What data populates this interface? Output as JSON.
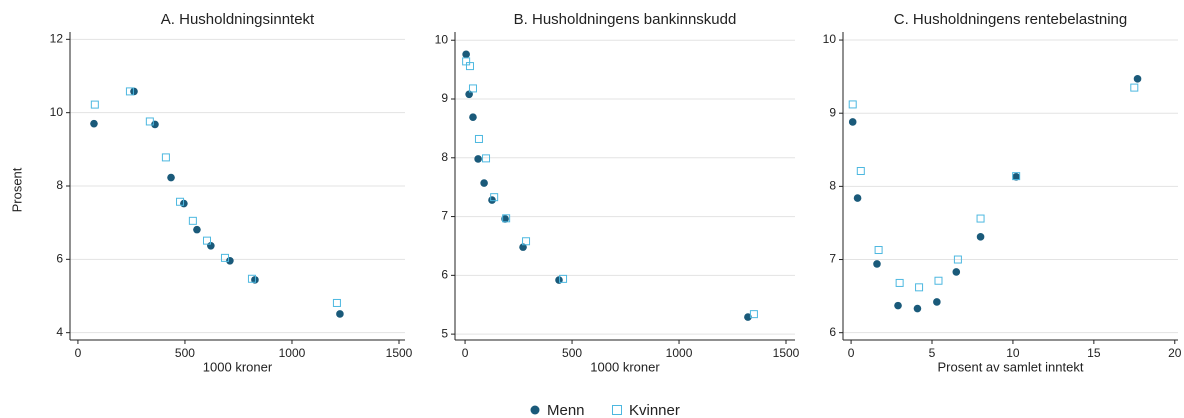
{
  "chart_data": [
    {
      "type": "scatter",
      "title": "A. Husholdningsinntekt",
      "xlabel": "1000 kroner",
      "ylabel": "Prosent",
      "xlim": [
        -37,
        1528
      ],
      "xticks": [
        0,
        500,
        1000,
        1500
      ],
      "ylim": [
        3.8,
        12.2
      ],
      "yticks": [
        4,
        6,
        8,
        10,
        12
      ],
      "grid": true,
      "series": [
        {
          "name": "Menn",
          "color": "#1a5a7a",
          "marker": "circle",
          "x": [
            75,
            262,
            360,
            435,
            495,
            556,
            621,
            710,
            827,
            1224
          ],
          "values": [
            9.7,
            10.58,
            9.68,
            8.23,
            7.52,
            6.81,
            6.37,
            5.96,
            5.44,
            4.51
          ]
        },
        {
          "name": "Kvinner",
          "color": "#4db8e0",
          "marker": "square",
          "x": [
            79,
            243,
            336,
            411,
            477,
            537,
            603,
            687,
            813,
            1210
          ],
          "values": [
            10.22,
            10.58,
            9.76,
            8.78,
            7.57,
            7.05,
            6.51,
            6.04,
            5.47,
            4.81
          ]
        }
      ]
    },
    {
      "type": "scatter",
      "title": "B. Husholdningens bankinnskudd",
      "xlabel": "1000 kroner",
      "xlim": [
        -47,
        1542
      ],
      "xticks": [
        0,
        500,
        1000,
        1500
      ],
      "ylim": [
        4.9,
        10.14
      ],
      "yticks": [
        5,
        6,
        7,
        8,
        9,
        10
      ],
      "grid": true,
      "series": [
        {
          "color": "#1a5a7a",
          "marker": "circle",
          "x": [
            5,
            19,
            37,
            61,
            89,
            126,
            187,
            271,
            439,
            1322
          ],
          "values": [
            9.76,
            9.08,
            8.69,
            7.98,
            7.57,
            7.28,
            6.96,
            6.48,
            5.92,
            5.29
          ]
        },
        {
          "color": "#4db8e0",
          "marker": "square",
          "x": [
            5,
            23,
            37,
            65,
            98,
            136,
            192,
            285,
            458,
            1350
          ],
          "values": [
            9.64,
            9.56,
            9.18,
            8.32,
            7.99,
            7.33,
            6.97,
            6.58,
            5.94,
            5.34
          ]
        }
      ]
    },
    {
      "type": "scatter",
      "title": "C. Husholdningens rentebelastning",
      "xlabel": "Prosent av samlet inntekt",
      "xlim": [
        -0.5,
        20.2
      ],
      "xticks": [
        0,
        5,
        10,
        15,
        20
      ],
      "ylim": [
        5.9,
        10.11
      ],
      "yticks": [
        6,
        7,
        8,
        9,
        10
      ],
      "grid": true,
      "series": [
        {
          "color": "#1a5a7a",
          "marker": "circle",
          "x": [
            0.1,
            0.4,
            1.6,
            2.9,
            4.1,
            5.3,
            6.5,
            8.0,
            10.2,
            17.7
          ],
          "values": [
            8.88,
            7.84,
            6.94,
            6.37,
            6.33,
            6.42,
            6.83,
            7.31,
            8.13,
            9.47
          ]
        },
        {
          "color": "#4db8e0",
          "marker": "square",
          "x": [
            0.1,
            0.6,
            1.7,
            3.0,
            4.2,
            5.4,
            6.6,
            8.0,
            10.2,
            17.5
          ],
          "values": [
            9.12,
            8.21,
            7.13,
            6.68,
            6.62,
            6.71,
            7.0,
            7.56,
            8.14,
            9.35
          ]
        }
      ]
    }
  ]
}
